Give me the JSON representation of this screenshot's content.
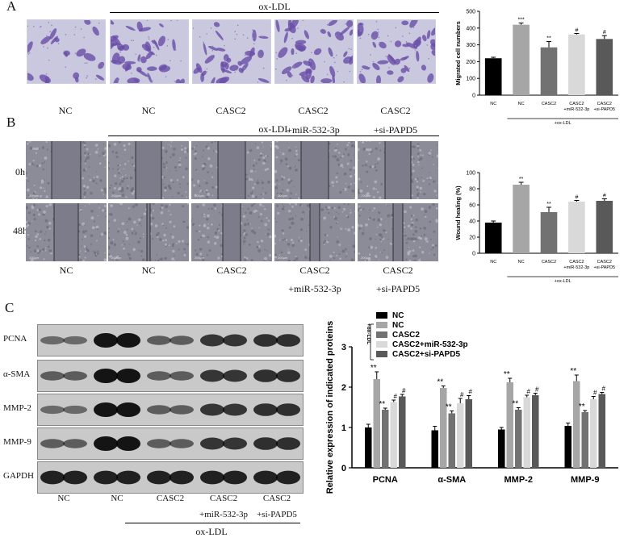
{
  "panel_a": {
    "letter": "A",
    "group_label": "ox-LDL",
    "image_labels": [
      "NC",
      "NC",
      "CASC2",
      "CASC2",
      "CASC2"
    ],
    "image_sublabels": [
      "",
      "",
      "",
      "+miR-532-3p",
      "+si-PAPD5"
    ]
  },
  "panel_b": {
    "letter": "B",
    "group_label": "ox-LDL",
    "row_labels": [
      "0h",
      "48h"
    ],
    "image_labels": [
      "NC",
      "NC",
      "CASC2",
      "CASC2",
      "CASC2"
    ],
    "image_sublabels": [
      "",
      "",
      "",
      "+miR-532-3p",
      "+si-PAPD5"
    ],
    "scale_bar_text": "200μm"
  },
  "panel_c": {
    "letter": "C",
    "blot_rows": [
      "PCNA",
      "α-SMA",
      "MMP-2",
      "MMP-9",
      "GAPDH"
    ],
    "lane_labels": [
      "NC",
      "NC",
      "CASC2",
      "CASC2",
      "CASC2"
    ],
    "lane_sublabels": [
      "",
      "",
      "",
      "+miR-532-3p",
      "+si-PAPD5"
    ],
    "group_label": "ox-LDL"
  },
  "colors": {
    "nc": "#000000",
    "ox_nc": "#a6a6a6",
    "casc2": "#727272",
    "casc2_mir": "#d9d9d9",
    "casc2_si": "#595959"
  },
  "chart_data": [
    {
      "type": "bar",
      "ylabel": "Migrated  cell numbers",
      "ylim": [
        0,
        500
      ],
      "yticks": [
        0,
        100,
        200,
        300,
        400,
        500
      ],
      "categories": [
        "NC",
        "NC",
        "CASC2",
        "CASC2\n+miR-532-3p",
        "CASC2\n+si-PAPD5"
      ],
      "values": [
        220,
        420,
        285,
        362,
        335
      ],
      "errors": [
        6,
        10,
        35,
        6,
        20
      ],
      "significance": [
        "",
        "***",
        "**",
        "#",
        "#"
      ],
      "group_label": "+ox-LDL"
    },
    {
      "type": "bar",
      "ylabel": "Wound healing (%)",
      "ylim": [
        0,
        100
      ],
      "yticks": [
        0,
        20,
        40,
        60,
        80,
        100
      ],
      "categories": [
        "NC",
        "NC",
        "CASC2",
        "CASC2\n+miR-532-3p",
        "CASC2\n+si-PAPD5"
      ],
      "values": [
        38,
        85,
        51,
        64,
        65
      ],
      "errors": [
        2,
        3,
        6,
        1.5,
        2.5
      ],
      "significance": [
        "",
        "**",
        "**",
        "#",
        "#"
      ],
      "group_label": "+ox-LDL"
    },
    {
      "type": "bar",
      "ylabel": "Relative expression of indicated proteins",
      "ylim": [
        0,
        3
      ],
      "yticks": [
        0,
        1,
        2,
        3
      ],
      "categories": [
        "PCNA",
        "α-SMA",
        "MMP-2",
        "MMP-9"
      ],
      "legend_bracket": "+ox-LDL",
      "series": [
        {
          "name": "NC",
          "values": [
            1.0,
            0.93,
            0.95,
            1.04
          ],
          "errors": [
            0.08,
            0.1,
            0.05,
            0.07
          ],
          "sig": [
            "",
            "",
            "",
            ""
          ]
        },
        {
          "name": "NC",
          "values": [
            2.2,
            1.98,
            2.12,
            2.15
          ],
          "errors": [
            0.18,
            0.05,
            0.1,
            0.15
          ],
          "sig": [
            "**",
            "**",
            "**",
            "**"
          ]
        },
        {
          "name": "CASC2",
          "values": [
            1.44,
            1.35,
            1.44,
            1.38
          ],
          "errors": [
            0.04,
            0.06,
            0.05,
            0.04
          ],
          "sig": [
            "**",
            "**",
            "**",
            "**"
          ]
        },
        {
          "name": "CASC2+miR-532-3p",
          "values": [
            1.63,
            1.6,
            1.75,
            1.7
          ],
          "errors": [
            0.05,
            0.12,
            0.05,
            0.07
          ],
          "sig": [
            "#",
            "#",
            "#",
            "#"
          ]
        },
        {
          "name": "CASC2+si-PAPD5",
          "values": [
            1.77,
            1.7,
            1.8,
            1.83
          ],
          "errors": [
            0.05,
            0.09,
            0.05,
            0.04
          ],
          "sig": [
            "#",
            "#",
            "#",
            "#"
          ]
        }
      ]
    }
  ]
}
